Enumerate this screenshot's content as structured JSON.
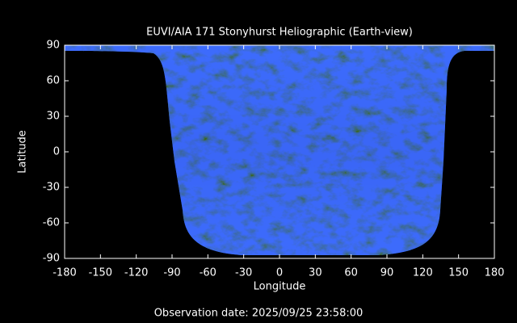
{
  "chart_data": {
    "type": "map",
    "title": "EUVI/AIA 171 Stonyhurst Heliographic (Earth-view)",
    "xlabel": "Longitude",
    "ylabel": "Latitude",
    "xlim": [
      -180,
      180
    ],
    "ylim": [
      -90,
      90
    ],
    "xticks": [
      -180,
      -150,
      -120,
      -90,
      -60,
      -30,
      0,
      30,
      60,
      90,
      120,
      150,
      180
    ],
    "yticks": [
      -90,
      -60,
      -30,
      0,
      30,
      60,
      90
    ],
    "footer": "Observation date: 2025/09/25 23:58:00"
  }
}
